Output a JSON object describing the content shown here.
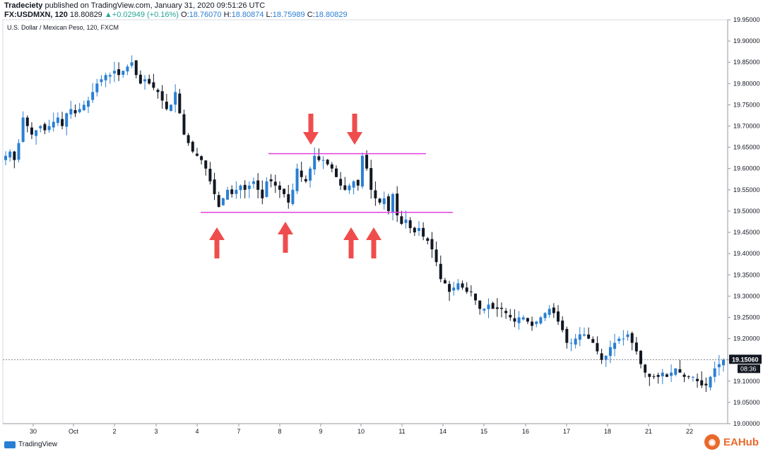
{
  "header": {
    "publisher": "Tradeciety",
    "published_text": "published on TradingView.com, January 31, 2020 09:51:26 UTC",
    "symbol": "FX:USDMXN, 120",
    "last": "18.80829",
    "change": "+0.02949 (+0.16%)",
    "o_label": "O:",
    "o": "18.76070",
    "h_label": "H:",
    "h": "18.80874",
    "l_label": "L:",
    "l": "18.75989",
    "c_label": "C:",
    "c": "18.80829"
  },
  "chart_title": "U.S. Dollar / Mexican Peso, 120, FXCM",
  "price_badge": "19.15060",
  "time_badge": "08:36",
  "footer": {
    "brand": "TradingView"
  },
  "watermark": {
    "text": "EAHub"
  },
  "colors": {
    "up": "#2a7fd4",
    "down": "#131722",
    "level": "#e040e0",
    "arrow": "#ef4d4d",
    "badge": "#131722"
  },
  "chart_data": {
    "type": "candlestick",
    "title": "U.S. Dollar / Mexican Peso, 120, FXCM",
    "ylim": [
      19.0,
      19.95
    ],
    "y_ticks": [
      "19.00000",
      "19.05000",
      "19.10000",
      "19.15000",
      "19.20000",
      "19.25000",
      "19.30000",
      "19.35000",
      "19.40000",
      "19.45000",
      "19.50000",
      "19.55000",
      "19.60000",
      "19.65000",
      "19.70000",
      "19.75000",
      "19.80000",
      "19.85000",
      "19.90000",
      "19.95000"
    ],
    "x_ticks": [
      "30",
      "Oct",
      "2",
      "3",
      "4",
      "7",
      "8",
      "9",
      "10",
      "11",
      "14",
      "15",
      "16",
      "17",
      "18",
      "21",
      "22"
    ],
    "last_price": 19.1506,
    "levels": [
      {
        "name": "resistance",
        "price": 19.635
      },
      {
        "name": "support",
        "price": 19.497
      }
    ],
    "arrows_down": [
      {
        "x_session": "9"
      },
      {
        "x_session": "10"
      }
    ],
    "arrows_up": [
      {
        "x_session": "4"
      },
      {
        "x_session": "8"
      },
      {
        "x_session": "10"
      },
      {
        "x_session": "10"
      }
    ],
    "path": [
      [
        0,
        19.63
      ],
      [
        1,
        19.64
      ],
      [
        2,
        19.62
      ],
      [
        3,
        19.66
      ],
      [
        4,
        19.72
      ],
      [
        5,
        19.7
      ],
      [
        6,
        19.68
      ],
      [
        7,
        19.69
      ],
      [
        8,
        19.7
      ],
      [
        9,
        19.69
      ],
      [
        10,
        19.7
      ],
      [
        11,
        19.71
      ],
      [
        12,
        19.72
      ],
      [
        13,
        19.7
      ],
      [
        14,
        19.73
      ],
      [
        15,
        19.74
      ],
      [
        16,
        19.73
      ],
      [
        17,
        19.74
      ],
      [
        18,
        19.75
      ],
      [
        19,
        19.76
      ],
      [
        20,
        19.78
      ],
      [
        21,
        19.8
      ],
      [
        22,
        19.81
      ],
      [
        23,
        19.82
      ],
      [
        24,
        19.82
      ],
      [
        25,
        19.83
      ],
      [
        26,
        19.82
      ],
      [
        27,
        19.83
      ],
      [
        28,
        19.84
      ],
      [
        29,
        19.85
      ],
      [
        30,
        19.82
      ],
      [
        31,
        19.8
      ],
      [
        32,
        19.81
      ],
      [
        33,
        19.8
      ],
      [
        34,
        19.79
      ],
      [
        35,
        19.78
      ],
      [
        36,
        19.76
      ],
      [
        37,
        19.74
      ],
      [
        38,
        19.75
      ],
      [
        39,
        19.78
      ],
      [
        40,
        19.73
      ],
      [
        41,
        19.68
      ],
      [
        42,
        19.66
      ],
      [
        43,
        19.64
      ],
      [
        44,
        19.63
      ],
      [
        45,
        19.62
      ],
      [
        46,
        19.6
      ],
      [
        47,
        19.57
      ],
      [
        48,
        19.54
      ],
      [
        49,
        19.51
      ],
      [
        50,
        19.53
      ],
      [
        51,
        19.55
      ],
      [
        52,
        19.54
      ],
      [
        53,
        19.55
      ],
      [
        54,
        19.56
      ],
      [
        55,
        19.55
      ],
      [
        56,
        19.56
      ],
      [
        57,
        19.57
      ],
      [
        58,
        19.55
      ],
      [
        59,
        19.53
      ],
      [
        60,
        19.57
      ],
      [
        61,
        19.57
      ],
      [
        62,
        19.56
      ],
      [
        63,
        19.55
      ],
      [
        64,
        19.54
      ],
      [
        65,
        19.52
      ],
      [
        66,
        19.55
      ],
      [
        67,
        19.6
      ],
      [
        68,
        19.58
      ],
      [
        69,
        19.57
      ],
      [
        70,
        19.6
      ],
      [
        71,
        19.63
      ],
      [
        72,
        19.62
      ],
      [
        73,
        19.62
      ],
      [
        74,
        19.61
      ],
      [
        75,
        19.6
      ],
      [
        76,
        19.58
      ],
      [
        77,
        19.56
      ],
      [
        78,
        19.55
      ],
      [
        79,
        19.56
      ],
      [
        80,
        19.57
      ],
      [
        81,
        19.56
      ],
      [
        82,
        19.63
      ],
      [
        83,
        19.6
      ],
      [
        84,
        19.55
      ],
      [
        85,
        19.53
      ],
      [
        86,
        19.52
      ],
      [
        87,
        19.53
      ],
      [
        88,
        19.5
      ],
      [
        89,
        19.54
      ],
      [
        90,
        19.49
      ],
      [
        91,
        19.47
      ],
      [
        92,
        19.48
      ],
      [
        93,
        19.46
      ],
      [
        94,
        19.45
      ],
      [
        95,
        19.46
      ],
      [
        96,
        19.44
      ],
      [
        97,
        19.43
      ],
      [
        98,
        19.41
      ],
      [
        99,
        19.38
      ],
      [
        100,
        19.34
      ],
      [
        101,
        19.33
      ],
      [
        102,
        19.31
      ],
      [
        103,
        19.32
      ],
      [
        104,
        19.33
      ],
      [
        105,
        19.32
      ],
      [
        106,
        19.31
      ],
      [
        107,
        19.31
      ],
      [
        108,
        19.29
      ],
      [
        109,
        19.27
      ],
      [
        110,
        19.27
      ],
      [
        111,
        19.28
      ],
      [
        112,
        19.27
      ],
      [
        113,
        19.27
      ],
      [
        114,
        19.27
      ],
      [
        115,
        19.26
      ],
      [
        116,
        19.25
      ],
      [
        117,
        19.24
      ],
      [
        118,
        19.25
      ],
      [
        119,
        19.25
      ],
      [
        120,
        19.24
      ],
      [
        121,
        19.23
      ],
      [
        122,
        19.24
      ],
      [
        123,
        19.25
      ],
      [
        124,
        19.26
      ],
      [
        125,
        19.27
      ],
      [
        126,
        19.26
      ],
      [
        127,
        19.24
      ],
      [
        128,
        19.22
      ],
      [
        129,
        19.19
      ],
      [
        130,
        19.19
      ],
      [
        131,
        19.2
      ],
      [
        132,
        19.21
      ],
      [
        133,
        19.21
      ],
      [
        134,
        19.2
      ],
      [
        135,
        19.19
      ],
      [
        136,
        19.17
      ],
      [
        137,
        19.15
      ],
      [
        138,
        19.16
      ],
      [
        139,
        19.18
      ],
      [
        140,
        19.19
      ],
      [
        141,
        19.2
      ],
      [
        142,
        19.2
      ],
      [
        143,
        19.21
      ],
      [
        144,
        19.19
      ],
      [
        145,
        19.17
      ],
      [
        146,
        19.14
      ],
      [
        147,
        19.12
      ],
      [
        148,
        19.11
      ],
      [
        149,
        19.11
      ],
      [
        150,
        19.11
      ],
      [
        151,
        19.12
      ],
      [
        152,
        19.11
      ],
      [
        153,
        19.12
      ],
      [
        154,
        19.13
      ],
      [
        155,
        19.12
      ],
      [
        156,
        19.11
      ],
      [
        157,
        19.11
      ],
      [
        158,
        19.11
      ],
      [
        159,
        19.1
      ],
      [
        160,
        19.09
      ],
      [
        161,
        19.09
      ],
      [
        162,
        19.11
      ],
      [
        163,
        19.13
      ],
      [
        164,
        19.14
      ],
      [
        165,
        19.15
      ]
    ]
  }
}
